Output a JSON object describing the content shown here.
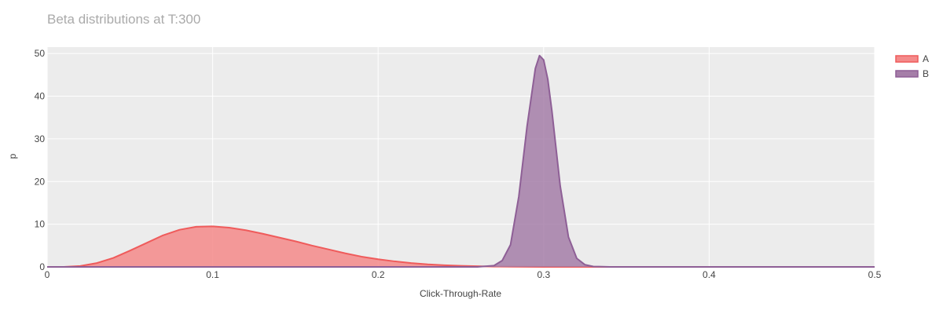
{
  "chart_data": {
    "type": "area",
    "title": "Beta distributions at T:300",
    "xlabel": "Click-Through-Rate",
    "ylabel": "p",
    "xlim": [
      0,
      0.5
    ],
    "ylim": [
      0,
      51.5
    ],
    "x_ticks": [
      "0",
      "0.1",
      "0.2",
      "0.3",
      "0.4",
      "0.5"
    ],
    "y_ticks": [
      "0",
      "10",
      "20",
      "30",
      "40",
      "50"
    ],
    "grid": true,
    "plot_background": "#ececec",
    "legend_position": "top-right",
    "series": [
      {
        "name": "A",
        "line_color": "#ef5b5b",
        "fill_color": "#f48a8a",
        "x": [
          0,
          0.01,
          0.02,
          0.03,
          0.04,
          0.05,
          0.06,
          0.07,
          0.08,
          0.09,
          0.1,
          0.11,
          0.12,
          0.13,
          0.14,
          0.15,
          0.16,
          0.17,
          0.18,
          0.19,
          0.2,
          0.21,
          0.22,
          0.23,
          0.24,
          0.25,
          0.26,
          0.27,
          0.28,
          0.29,
          0.3,
          0.5
        ],
        "y": [
          0,
          0,
          0.2,
          0.9,
          2.1,
          3.8,
          5.6,
          7.4,
          8.7,
          9.4,
          9.5,
          9.2,
          8.6,
          7.8,
          6.9,
          6.0,
          5.0,
          4.1,
          3.2,
          2.4,
          1.8,
          1.3,
          0.9,
          0.6,
          0.4,
          0.25,
          0.15,
          0.08,
          0.04,
          0.02,
          0,
          0
        ]
      },
      {
        "name": "B",
        "line_color": "#8e5f96",
        "fill_color": "#a57ea8",
        "x": [
          0,
          0.26,
          0.27,
          0.275,
          0.28,
          0.285,
          0.29,
          0.295,
          0.2975,
          0.3,
          0.3025,
          0.305,
          0.31,
          0.315,
          0.32,
          0.325,
          0.33,
          0.34,
          0.5
        ],
        "y": [
          0,
          0,
          0.3,
          1.5,
          5.2,
          16.5,
          33.0,
          46.5,
          49.5,
          48.5,
          44.0,
          36.5,
          19.0,
          7.0,
          2.0,
          0.5,
          0.1,
          0,
          0
        ]
      }
    ]
  }
}
